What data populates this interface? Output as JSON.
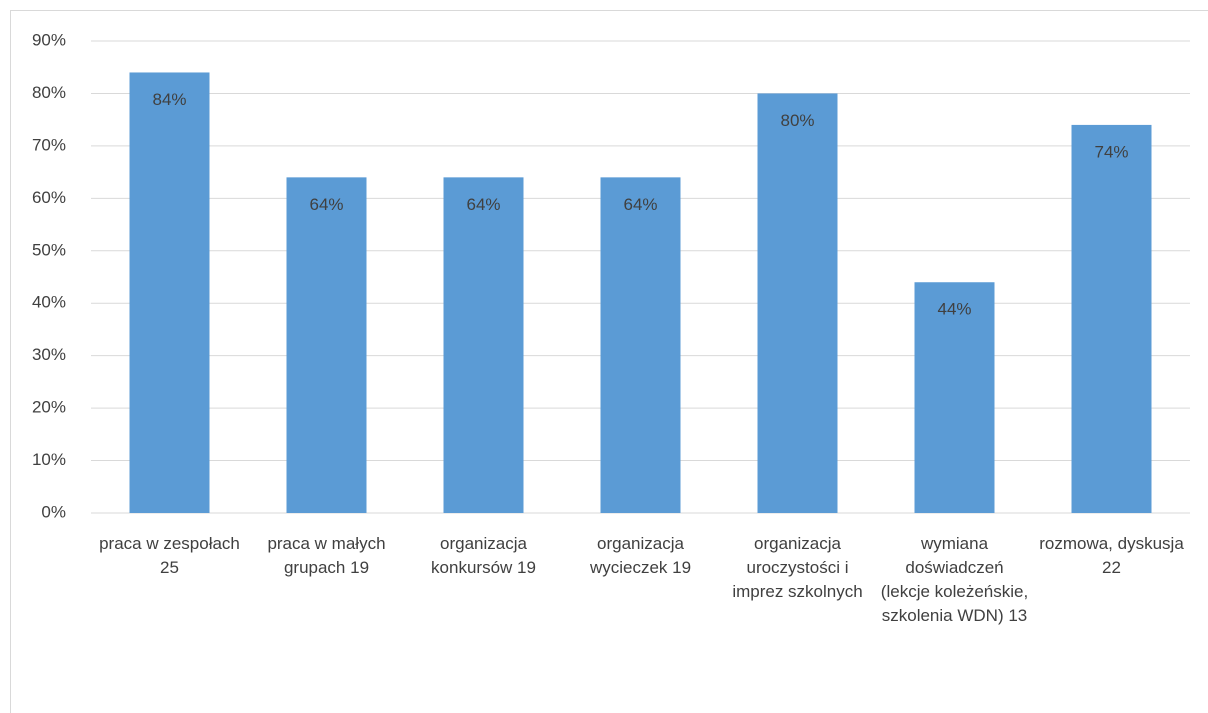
{
  "chart_data": {
    "type": "bar",
    "categories": [
      "praca w zespołach 25",
      "praca w małych grupach 19",
      "organizacja konkursów 19",
      "organizacja wycieczek 19",
      "organizacja uroczystości i imprez szkolnych",
      "wymiana doświadczeń (lekcje koleżeńskie, szkolenia WDN) 13",
      "rozmowa, dyskusja 22"
    ],
    "values": [
      84,
      64,
      64,
      64,
      80,
      44,
      74
    ],
    "value_labels": [
      "84%",
      "64%",
      "64%",
      "64%",
      "80%",
      "44%",
      "74%"
    ],
    "color": "#5b9bd5",
    "ylim": [
      0,
      90
    ],
    "yticks": [
      {
        "value": 0,
        "label": "0%"
      },
      {
        "value": 10,
        "label": "10%"
      },
      {
        "value": 20,
        "label": "20%"
      },
      {
        "value": 30,
        "label": "30%"
      },
      {
        "value": 40,
        "label": "40%"
      },
      {
        "value": 50,
        "label": "50%"
      },
      {
        "value": 60,
        "label": "60%"
      },
      {
        "value": 70,
        "label": "70%"
      },
      {
        "value": 80,
        "label": "80%"
      },
      {
        "value": 90,
        "label": "90%"
      }
    ],
    "grid": true
  }
}
